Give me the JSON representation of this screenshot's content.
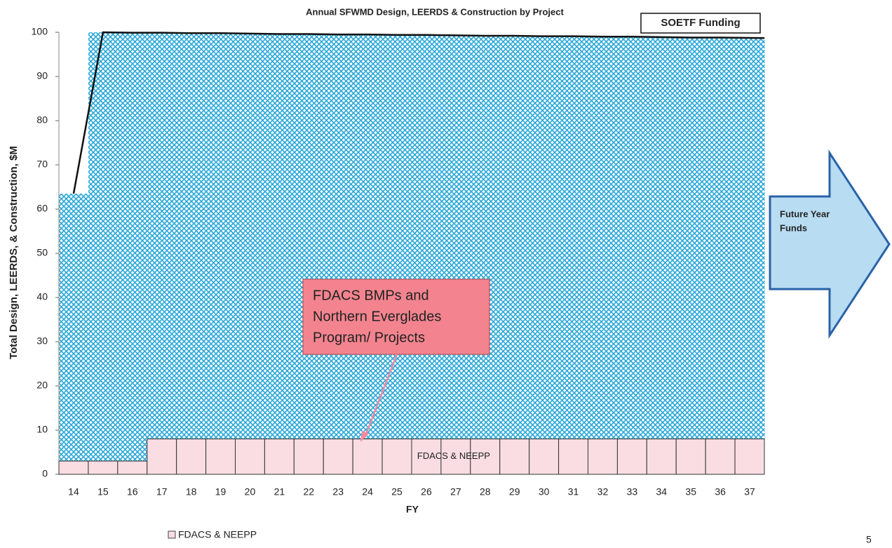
{
  "chart_data": {
    "type": "bar",
    "title": "Annual SFWMD Design, LEERDS & Construction by Project",
    "y_label": "Total Design,  LEERDS, & Construction, $M",
    "x_label": "FY",
    "categories": [
      "14",
      "15",
      "16",
      "17",
      "18",
      "19",
      "20",
      "21",
      "22",
      "23",
      "24",
      "25",
      "26",
      "27",
      "28",
      "29",
      "30",
      "31",
      "32",
      "33",
      "34",
      "35",
      "36",
      "37"
    ],
    "series": [
      {
        "name": "FDACS & NEEPP",
        "color": "#f9dde3",
        "values": [
          3,
          3,
          3,
          8,
          8,
          8,
          8,
          8,
          8,
          8,
          8,
          8,
          8,
          8,
          8,
          8,
          8,
          8,
          8,
          8,
          8,
          8,
          8,
          8
        ]
      },
      {
        "name": "SOETF Funding",
        "color": "#111111",
        "fill": "#3fb3e0",
        "values": [
          63.5,
          100,
          99.9,
          99.9,
          99.8,
          99.8,
          99.7,
          99.6,
          99.6,
          99.5,
          99.5,
          99.4,
          99.4,
          99.3,
          99.2,
          99.2,
          99.1,
          99.1,
          99.0,
          99.0,
          98.9,
          98.8,
          98.8,
          98.7
        ]
      }
    ],
    "ylim": [
      0,
      100
    ],
    "yticks": [
      0,
      10,
      20,
      30,
      40,
      50,
      60,
      70,
      80,
      90,
      100
    ],
    "bar_label": "FDACS & NEEPP",
    "callout": [
      "FDACS BMPs and",
      "Northern Everglades",
      "Program/ Projects"
    ],
    "arrow_label": [
      "Future Year",
      "Funds"
    ],
    "page_number": "5"
  }
}
